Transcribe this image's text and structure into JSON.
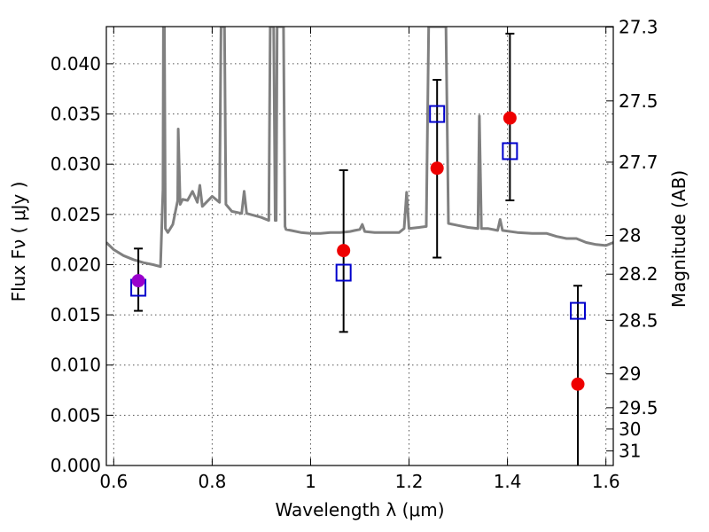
{
  "chart_data": {
    "type": "scatter",
    "xlabel": "Wavelength  λ (μm)",
    "ylabel": "Flux  Fν  ( μJy )",
    "ylabel2": "Magnitude (AB)",
    "xlim": [
      0.585,
      1.615
    ],
    "ylim": [
      0.0,
      0.0437
    ],
    "grid": true,
    "x_ticks": [
      0.6,
      0.8,
      1.0,
      1.2,
      1.4,
      1.6
    ],
    "x_tick_labels": [
      "0.6",
      "0.8",
      "1",
      "1.2",
      "1.4",
      "1.6"
    ],
    "y_ticks": [
      0.0,
      0.005,
      0.01,
      0.015,
      0.02,
      0.025,
      0.03,
      0.035,
      0.04
    ],
    "y_tick_labels": [
      "0.000",
      "0.005",
      "0.010",
      "0.015",
      "0.020",
      "0.025",
      "0.030",
      "0.035",
      "0.040"
    ],
    "right_ticks": [
      {
        "flux": 0.04365,
        "label": "27.3"
      },
      {
        "flux": 0.0363,
        "label": "27.5"
      },
      {
        "flux": 0.0302,
        "label": "27.7"
      },
      {
        "flux": 0.02291,
        "label": "28"
      },
      {
        "flux": 0.01905,
        "label": "28.2"
      },
      {
        "flux": 0.01445,
        "label": "28.5"
      },
      {
        "flux": 0.00912,
        "label": "29"
      },
      {
        "flux": 0.00575,
        "label": "29.5"
      },
      {
        "flux": 0.00363,
        "label": "30"
      },
      {
        "flux": 0.00145,
        "label": "31"
      }
    ],
    "series": [
      {
        "kind": "model_spectrum",
        "color": "#808080",
        "points": [
          [
            0.585,
            0.0222
          ],
          [
            0.6,
            0.0215
          ],
          [
            0.62,
            0.0209
          ],
          [
            0.64,
            0.0205
          ],
          [
            0.66,
            0.0202
          ],
          [
            0.68,
            0.02
          ],
          [
            0.695,
            0.0198
          ],
          [
            0.7,
            0.0275
          ],
          [
            0.701,
            0.0437
          ],
          [
            0.703,
            0.0437
          ],
          [
            0.705,
            0.0236
          ],
          [
            0.71,
            0.0232
          ],
          [
            0.72,
            0.024
          ],
          [
            0.73,
            0.0264
          ],
          [
            0.731,
            0.0335
          ],
          [
            0.735,
            0.026
          ],
          [
            0.74,
            0.0265
          ],
          [
            0.75,
            0.0264
          ],
          [
            0.76,
            0.0273
          ],
          [
            0.77,
            0.0262
          ],
          [
            0.775,
            0.0279
          ],
          [
            0.78,
            0.0258
          ],
          [
            0.8,
            0.0268
          ],
          [
            0.815,
            0.0262
          ],
          [
            0.818,
            0.0437
          ],
          [
            0.825,
            0.0437
          ],
          [
            0.828,
            0.026
          ],
          [
            0.84,
            0.0253
          ],
          [
            0.86,
            0.0251
          ],
          [
            0.865,
            0.0273
          ],
          [
            0.87,
            0.0251
          ],
          [
            0.9,
            0.0247
          ],
          [
            0.915,
            0.0244
          ],
          [
            0.918,
            0.0437
          ],
          [
            0.925,
            0.0437
          ],
          [
            0.928,
            0.0244
          ],
          [
            0.93,
            0.0244
          ],
          [
            0.932,
            0.0437
          ],
          [
            0.945,
            0.0437
          ],
          [
            0.948,
            0.0238
          ],
          [
            0.95,
            0.0235
          ],
          [
            0.96,
            0.0234
          ],
          [
            0.98,
            0.0232
          ],
          [
            1.0,
            0.0231
          ],
          [
            1.02,
            0.0231
          ],
          [
            1.04,
            0.0232
          ],
          [
            1.06,
            0.0232
          ],
          [
            1.08,
            0.0233
          ],
          [
            1.09,
            0.0234
          ],
          [
            1.1,
            0.0235
          ],
          [
            1.105,
            0.024
          ],
          [
            1.11,
            0.0233
          ],
          [
            1.13,
            0.0232
          ],
          [
            1.15,
            0.0232
          ],
          [
            1.18,
            0.0232
          ],
          [
            1.19,
            0.0236
          ],
          [
            1.195,
            0.0272
          ],
          [
            1.2,
            0.0236
          ],
          [
            1.22,
            0.0237
          ],
          [
            1.235,
            0.0238
          ],
          [
            1.24,
            0.0437
          ],
          [
            1.265,
            0.0437
          ],
          [
            1.275,
            0.0437
          ],
          [
            1.28,
            0.0241
          ],
          [
            1.3,
            0.0239
          ],
          [
            1.32,
            0.0237
          ],
          [
            1.34,
            0.0236
          ],
          [
            1.343,
            0.0348
          ],
          [
            1.347,
            0.0236
          ],
          [
            1.36,
            0.0236
          ],
          [
            1.38,
            0.0234
          ],
          [
            1.385,
            0.0245
          ],
          [
            1.39,
            0.0234
          ],
          [
            1.42,
            0.0232
          ],
          [
            1.45,
            0.0231
          ],
          [
            1.48,
            0.0231
          ],
          [
            1.5,
            0.0228
          ],
          [
            1.52,
            0.0226
          ],
          [
            1.54,
            0.0226
          ],
          [
            1.56,
            0.0222
          ],
          [
            1.58,
            0.022
          ],
          [
            1.6,
            0.0219
          ],
          [
            1.615,
            0.0222
          ]
        ]
      },
      {
        "kind": "error_bars",
        "color": "#000000",
        "points": [
          {
            "x": 0.65,
            "low": 0.0154,
            "high": 0.0216
          },
          {
            "x": 1.067,
            "low": 0.0133,
            "high": 0.0294
          },
          {
            "x": 1.257,
            "low": 0.0207,
            "high": 0.0384
          },
          {
            "x": 1.405,
            "low": 0.0264,
            "high": 0.043
          },
          {
            "x": 1.543,
            "low": 0.0,
            "high": 0.0179
          }
        ]
      },
      {
        "kind": "open_squares",
        "color": "#0000cc",
        "points": [
          [
            0.65,
            0.0177
          ],
          [
            1.067,
            0.0192
          ],
          [
            1.257,
            0.035
          ],
          [
            1.405,
            0.0313
          ],
          [
            1.543,
            0.0154
          ]
        ]
      },
      {
        "kind": "filled_circles",
        "color": "#ee0000",
        "points": [
          [
            0.65,
            0.0184
          ],
          [
            1.067,
            0.0214
          ],
          [
            1.257,
            0.0296
          ],
          [
            1.405,
            0.0346
          ],
          [
            1.543,
            0.0081
          ]
        ]
      }
    ],
    "first_circle_color": "#9900cc"
  }
}
